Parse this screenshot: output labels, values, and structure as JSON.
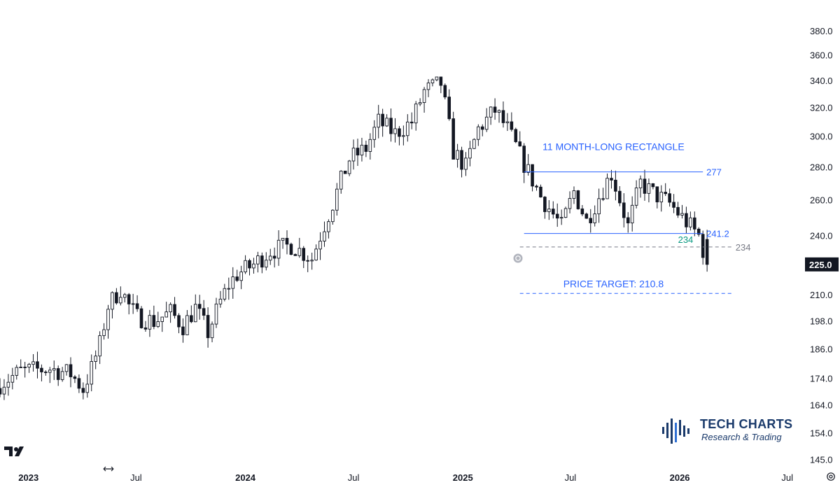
{
  "chart_data": {
    "type": "candlestick",
    "title": "",
    "xlabel": "",
    "ylabel": "",
    "y_scale": "log",
    "ylim": [
      143,
      395
    ],
    "y_ticks": [
      "380.0",
      "360.0",
      "340.0",
      "320.0",
      "300.0",
      "280.0",
      "260.0",
      "240.0",
      "225.0",
      "210.0",
      "198.0",
      "186.0",
      "174.0",
      "164.0",
      "154.0",
      "145.0"
    ],
    "y_tick_values": [
      380,
      360,
      340,
      320,
      300,
      280,
      260,
      240,
      225,
      210,
      198,
      186,
      174,
      164,
      154,
      145
    ],
    "current_price": {
      "label": "225.0",
      "value": 225.0,
      "color": "#131722"
    },
    "x_ticks": [
      {
        "label": "2023",
        "date": "2023-01-01",
        "bold": true
      },
      {
        "label": "Jul",
        "date": "2023-07-01",
        "bold": false
      },
      {
        "label": "2024",
        "date": "2024-01-01",
        "bold": true
      },
      {
        "label": "Jul",
        "date": "2024-07-01",
        "bold": false
      },
      {
        "label": "2025",
        "date": "2025-01-01",
        "bold": true
      },
      {
        "label": "Jul",
        "date": "2025-07-01",
        "bold": false
      },
      {
        "label": "2026",
        "date": "2026-01-01",
        "bold": true
      },
      {
        "label": "Jul",
        "date": "2026-07-01",
        "bold": false
      }
    ],
    "x_range": [
      "2022-11-14",
      "2026-07-19"
    ],
    "weekly_close": [
      {
        "date": "2022-11-14",
        "close": 172
      },
      {
        "date": "2022-12-19",
        "close": 177
      },
      {
        "date": "2023-02-06",
        "close": 178
      },
      {
        "date": "2023-03-13",
        "close": 176
      },
      {
        "date": "2023-04-03",
        "close": 170
      },
      {
        "date": "2023-04-17",
        "close": 178
      },
      {
        "date": "2023-05-01",
        "close": 188
      },
      {
        "date": "2023-05-15",
        "close": 205
      },
      {
        "date": "2023-06-05",
        "close": 213
      },
      {
        "date": "2023-06-19",
        "close": 205
      },
      {
        "date": "2023-07-03",
        "close": 200
      },
      {
        "date": "2023-07-31",
        "close": 198
      },
      {
        "date": "2023-08-28",
        "close": 202
      },
      {
        "date": "2023-09-18",
        "close": 196
      },
      {
        "date": "2023-10-09",
        "close": 204
      },
      {
        "date": "2023-10-30",
        "close": 193
      },
      {
        "date": "2023-11-20",
        "close": 207
      },
      {
        "date": "2023-12-04",
        "close": 215
      },
      {
        "date": "2023-12-18",
        "close": 220
      },
      {
        "date": "2024-01-15",
        "close": 225
      },
      {
        "date": "2024-02-12",
        "close": 232
      },
      {
        "date": "2024-03-18",
        "close": 235
      },
      {
        "date": "2024-04-22",
        "close": 228
      },
      {
        "date": "2024-05-27",
        "close": 258
      },
      {
        "date": "2024-06-24",
        "close": 285
      },
      {
        "date": "2024-07-22",
        "close": 292
      },
      {
        "date": "2024-08-12",
        "close": 310
      },
      {
        "date": "2024-09-09",
        "close": 302
      },
      {
        "date": "2024-10-07",
        "close": 310
      },
      {
        "date": "2024-10-28",
        "close": 332
      },
      {
        "date": "2024-11-25",
        "close": 338
      },
      {
        "date": "2024-12-16",
        "close": 290
      },
      {
        "date": "2025-01-06",
        "close": 280
      },
      {
        "date": "2025-01-27",
        "close": 305
      },
      {
        "date": "2025-02-24",
        "close": 318
      },
      {
        "date": "2025-03-17",
        "close": 305
      },
      {
        "date": "2025-04-14",
        "close": 282
      },
      {
        "date": "2025-05-12",
        "close": 262
      },
      {
        "date": "2025-06-16",
        "close": 245
      },
      {
        "date": "2025-07-07",
        "close": 265
      },
      {
        "date": "2025-07-28",
        "close": 248
      },
      {
        "date": "2025-08-18",
        "close": 262
      },
      {
        "date": "2025-09-08",
        "close": 276
      },
      {
        "date": "2025-10-06",
        "close": 245
      },
      {
        "date": "2025-10-27",
        "close": 270
      },
      {
        "date": "2025-11-17",
        "close": 264
      },
      {
        "date": "2025-12-15",
        "close": 258
      },
      {
        "date": "2026-01-05",
        "close": 250
      },
      {
        "date": "2026-01-19",
        "close": 245
      },
      {
        "date": "2026-02-02",
        "close": 240
      },
      {
        "date": "2026-02-16",
        "close": 225
      }
    ],
    "annotations": [
      {
        "kind": "text",
        "text": "11 MONTH-LONG RECTANGLE",
        "color": "#2962ff"
      },
      {
        "kind": "hline",
        "value": 277,
        "label": "277",
        "color": "#2962ff",
        "style": "solid",
        "start": "2025-04-14",
        "end": "2026-02-09"
      },
      {
        "kind": "hline",
        "value": 241.2,
        "label": "241.2",
        "color": "#2962ff",
        "style": "solid",
        "start": "2025-04-14",
        "end": "2026-02-09"
      },
      {
        "kind": "hline",
        "value": 234,
        "label": "234",
        "color": "#787b86",
        "style": "dashed",
        "start": "2025-04-07",
        "end": "2026-03-30"
      },
      {
        "kind": "text",
        "text": "234",
        "color": "#089981"
      },
      {
        "kind": "hline",
        "value": 210.8,
        "label": "",
        "color": "#2962ff",
        "style": "dashed",
        "start": "2025-04-07",
        "end": "2026-03-30"
      },
      {
        "kind": "text",
        "text": "PRICE TARGET: 210.8",
        "color": "#2962ff"
      }
    ]
  },
  "branding": {
    "logo_title": "TECH CHARTS",
    "logo_subtitle": "Research & Trading",
    "logo_color": "#1a3a6b",
    "platform_icon": "tradingview-logo-icon",
    "settings_icon": "gear-icon"
  }
}
